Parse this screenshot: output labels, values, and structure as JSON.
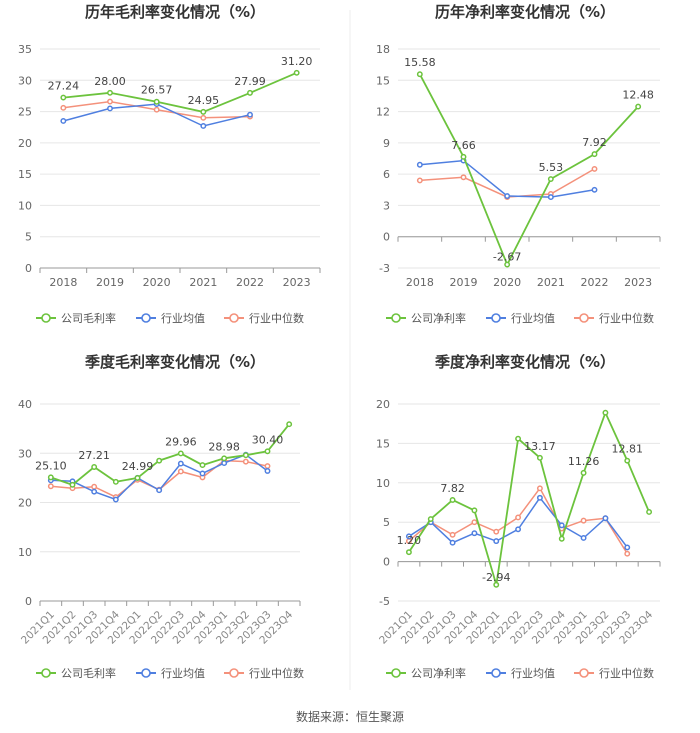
{
  "source": "数据来源：恒生聚源",
  "colors": {
    "company": "#6cc33d",
    "industry_avg": "#4f7fe0",
    "industry_median": "#f4917b",
    "grid": "#e6e6e6",
    "axis": "#999999",
    "text": "#444444"
  },
  "chart_data": [
    {
      "type": "line",
      "title": "历年毛利率变化情况（%）",
      "categories": [
        "2018",
        "2019",
        "2020",
        "2021",
        "2022",
        "2023"
      ],
      "ylim": [
        0,
        35
      ],
      "yticks": [
        0,
        5,
        10,
        15,
        20,
        25,
        30,
        35
      ],
      "series": [
        {
          "name": "公司毛利率",
          "key": "company",
          "values": [
            27.24,
            28.0,
            26.57,
            24.95,
            27.99,
            31.2
          ],
          "labels": [
            "27.24",
            "28.00",
            "26.57",
            "24.95",
            "27.99",
            "31.20"
          ]
        },
        {
          "name": "行业均值",
          "key": "industry_avg",
          "values": [
            23.5,
            25.5,
            26.2,
            22.7,
            24.5,
            null
          ]
        },
        {
          "name": "行业中位数",
          "key": "industry_median",
          "values": [
            25.6,
            26.6,
            25.3,
            24.0,
            24.2,
            null
          ]
        }
      ],
      "x_rotate": false
    },
    {
      "type": "line",
      "title": "历年净利率变化情况（%）",
      "categories": [
        "2018",
        "2019",
        "2020",
        "2021",
        "2022",
        "2023"
      ],
      "ylim": [
        -3,
        18
      ],
      "yticks": [
        -3,
        0,
        3,
        6,
        9,
        12,
        15,
        18
      ],
      "series": [
        {
          "name": "公司净利率",
          "key": "company",
          "values": [
            15.58,
            7.66,
            -2.67,
            5.53,
            7.92,
            12.48
          ],
          "labels": [
            "15.58",
            "7.66",
            "-2.67",
            "5.53",
            "7.92",
            "12.48"
          ]
        },
        {
          "name": "行业均值",
          "key": "industry_avg",
          "values": [
            6.9,
            7.3,
            3.9,
            3.8,
            4.5,
            null
          ]
        },
        {
          "name": "行业中位数",
          "key": "industry_median",
          "values": [
            5.4,
            5.7,
            3.8,
            4.1,
            6.5,
            null
          ]
        }
      ],
      "x_rotate": false
    },
    {
      "type": "line",
      "title": "季度毛利率变化情况（%）",
      "categories": [
        "2021Q1",
        "2021Q2",
        "2021Q3",
        "2021Q4",
        "2022Q1",
        "2022Q2",
        "2022Q3",
        "2022Q4",
        "2023Q1",
        "2023Q2",
        "2023Q3",
        "2023Q4"
      ],
      "ylim": [
        0,
        40
      ],
      "yticks": [
        0,
        10,
        20,
        30,
        40
      ],
      "series": [
        {
          "name": "公司毛利率",
          "key": "company",
          "values": [
            25.1,
            23.6,
            27.21,
            24.2,
            24.99,
            28.5,
            29.96,
            27.6,
            28.98,
            29.6,
            30.4,
            35.9
          ],
          "labels": [
            "25.10",
            "",
            "27.21",
            "",
            "24.99",
            "",
            "29.96",
            "",
            "28.98",
            "",
            "30.40",
            ""
          ]
        },
        {
          "name": "行业均值",
          "key": "industry_avg",
          "values": [
            24.5,
            24.3,
            22.2,
            20.6,
            25.0,
            22.5,
            27.9,
            25.9,
            28.0,
            29.7,
            26.4,
            null
          ]
        },
        {
          "name": "行业中位数",
          "key": "industry_median",
          "values": [
            23.3,
            22.9,
            23.2,
            21.1,
            24.6,
            22.6,
            26.3,
            25.1,
            28.5,
            28.3,
            27.4,
            null
          ]
        }
      ],
      "x_rotate": true
    },
    {
      "type": "line",
      "title": "季度净利率变化情况（%）",
      "categories": [
        "2021Q1",
        "2021Q2",
        "2021Q3",
        "2021Q4",
        "2022Q1",
        "2022Q2",
        "2022Q3",
        "2022Q4",
        "2023Q1",
        "2023Q2",
        "2023Q3",
        "2023Q4"
      ],
      "ylim": [
        -5,
        20
      ],
      "yticks": [
        -5,
        0,
        5,
        10,
        15,
        20
      ],
      "series": [
        {
          "name": "公司净利率",
          "key": "company",
          "values": [
            1.2,
            5.4,
            7.82,
            6.5,
            -2.94,
            15.6,
            13.17,
            2.9,
            11.26,
            18.9,
            12.81,
            6.3
          ],
          "labels": [
            "1.20",
            "",
            "7.82",
            "",
            "-2.94",
            "",
            "13.17",
            "",
            "11.26",
            "",
            "12.81",
            ""
          ]
        },
        {
          "name": "行业均值",
          "key": "industry_avg",
          "values": [
            3.2,
            5.0,
            2.4,
            3.6,
            2.6,
            4.1,
            8.1,
            4.6,
            3.0,
            5.5,
            1.8,
            null
          ]
        },
        {
          "name": "行业中位数",
          "key": "industry_median",
          "values": [
            2.6,
            5.0,
            3.4,
            5.0,
            3.8,
            5.6,
            9.3,
            4.2,
            5.2,
            5.5,
            1.0,
            null
          ]
        }
      ],
      "x_rotate": true
    }
  ]
}
